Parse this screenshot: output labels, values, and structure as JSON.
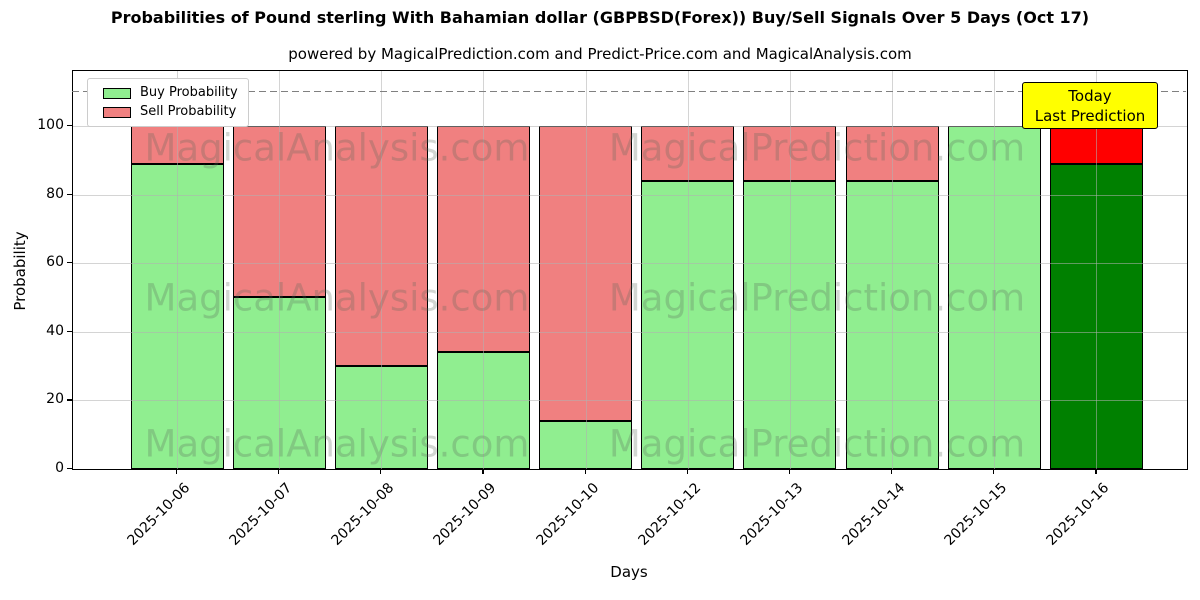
{
  "chart_data": {
    "type": "bar",
    "stacked": true,
    "title": "Probabilities of Pound sterling With Bahamian dollar (GBPBSD(Forex)) Buy/Sell Signals Over 5 Days (Oct 17)",
    "subtitle": "powered by MagicalPrediction.com and Predict-Price.com and MagicalAnalysis.com",
    "xlabel": "Days",
    "ylabel": "Probability",
    "ylim": [
      0,
      116
    ],
    "yticks": [
      0,
      20,
      40,
      60,
      80,
      100
    ],
    "grid": true,
    "legend_position": "upper-left",
    "dashed_line_y": 110,
    "categories": [
      "2025-10-06",
      "2025-10-07",
      "2025-10-08",
      "2025-10-09",
      "2025-10-10",
      "2025-10-12",
      "2025-10-13",
      "2025-10-14",
      "2025-10-15",
      "2025-10-16"
    ],
    "series": [
      {
        "name": "Buy Probability",
        "color": "#90EE90",
        "values": [
          89,
          50,
          30,
          34,
          14,
          84,
          84,
          84,
          100,
          89
        ]
      },
      {
        "name": "Sell Probability",
        "color": "#F08080",
        "values": [
          11,
          50,
          70,
          66,
          86,
          16,
          16,
          16,
          0,
          11
        ]
      }
    ],
    "today": {
      "category": "2025-10-16",
      "buy_color": "#008000",
      "sell_color": "#FF0000",
      "annotation_lines": [
        "Today",
        "Last Prediction"
      ],
      "annotation_bg": "#FFFF00"
    },
    "watermarks": {
      "left": "MagicalAnalysis.com",
      "right": "MagicalPrediction.com"
    },
    "colors": {
      "grid": "#b0b0b0",
      "dashed_line": "#808080",
      "bar_edge": "#000000"
    }
  }
}
